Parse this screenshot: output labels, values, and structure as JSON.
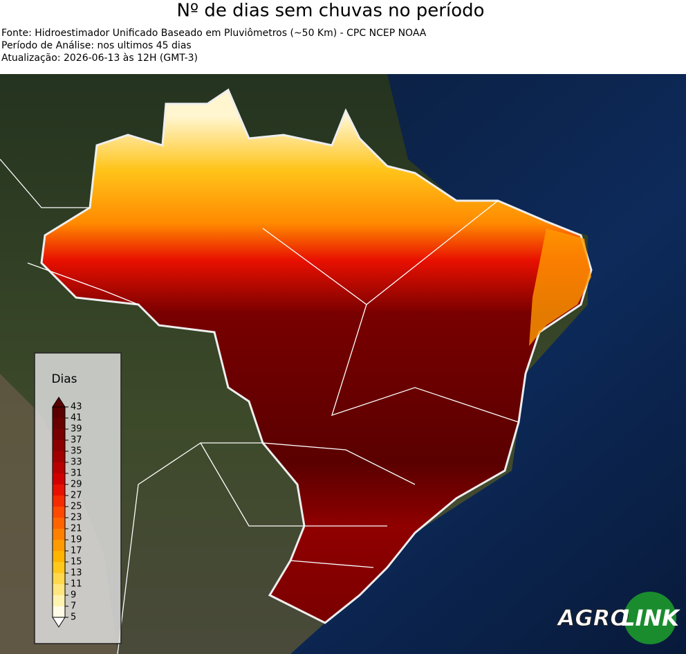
{
  "header": {
    "title": "Nº de dias sem chuvas no período",
    "lines": [
      "Fonte: Hidroestimador Unificado Baseado em Pluviômetros (~50 Km) - CPC NCEP NOAA",
      "Período de Análise: nos ultimos 45 dias",
      "Atualização: 2026-06-13 às 12H (GMT-3)"
    ]
  },
  "legend": {
    "title": "Dias",
    "lim": [
      5,
      43
    ],
    "ticks": [
      5,
      7,
      9,
      11,
      13,
      15,
      17,
      19,
      21,
      23,
      25,
      27,
      29,
      31,
      33,
      35,
      37,
      39,
      41,
      43
    ],
    "colors": [
      "#fffbe6",
      "#fff3b0",
      "#ffe680",
      "#ffd84d",
      "#ffc81a",
      "#ffb400",
      "#ff9a00",
      "#ff8000",
      "#ff6400",
      "#ff4800",
      "#f52a00",
      "#e81000",
      "#d00000",
      "#b80000",
      "#a00000",
      "#8c0000",
      "#780000",
      "#680000",
      "#5a0000"
    ]
  },
  "logo": {
    "left": "AGRO",
    "right": "LINK"
  }
}
